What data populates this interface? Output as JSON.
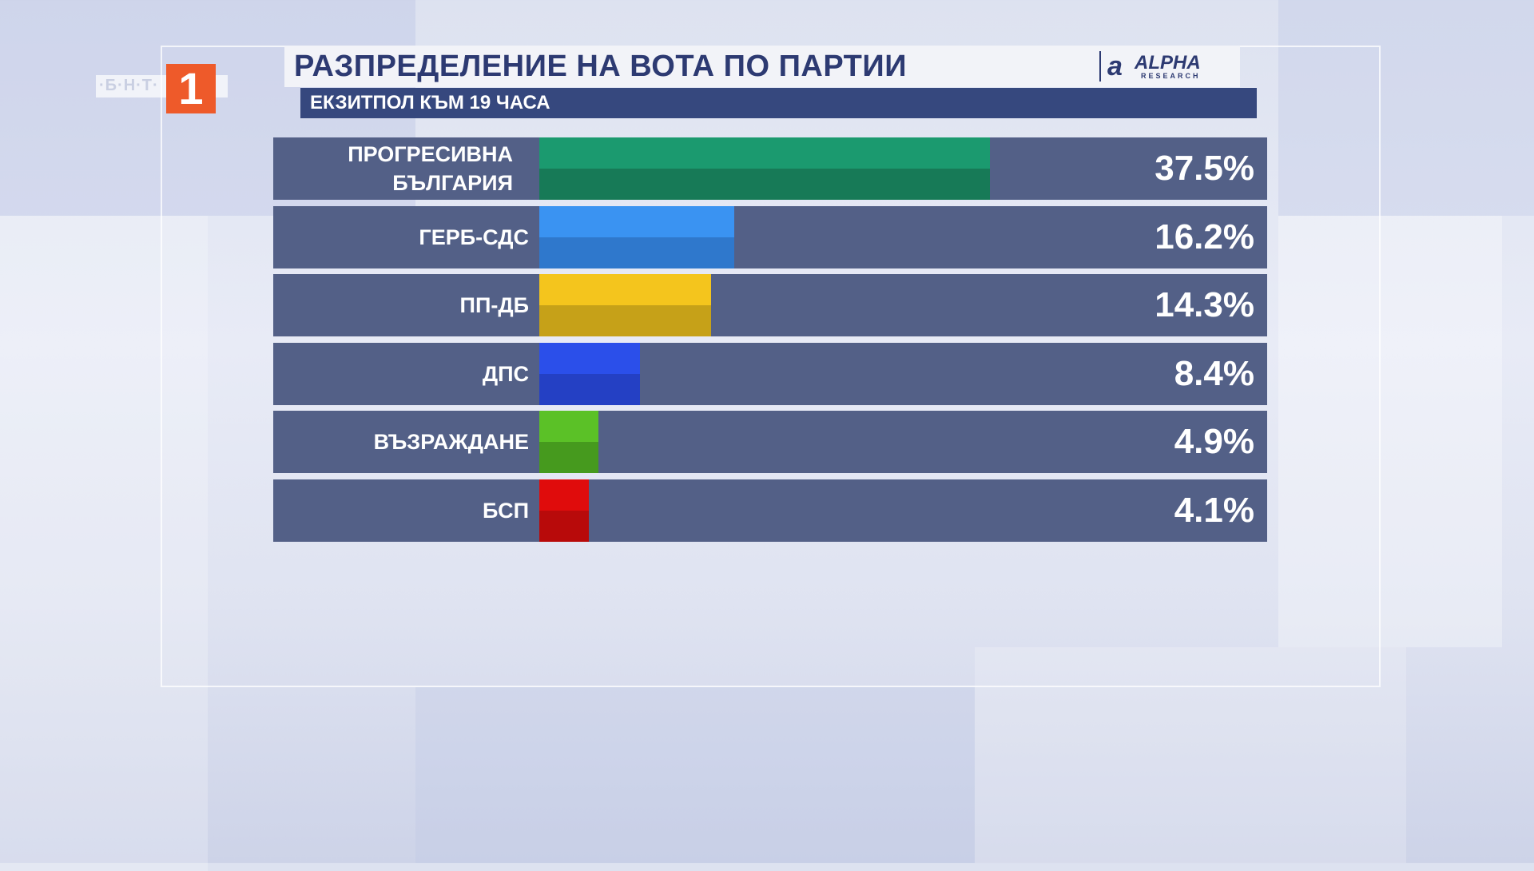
{
  "channel_logo": {
    "text": "·Б·Н·Т·",
    "number": "1"
  },
  "header": {
    "title": "РАЗПРЕДЕЛЕНИЕ НА ВОТА ПО ПАРТИИ",
    "subtitle": "ЕКЗИТПОЛ КЪМ 19 ЧАСА",
    "source_logo": {
      "mark": "a",
      "word": "ALPHA",
      "sub": "RESEARCH"
    }
  },
  "colors": {
    "row_background": "#536087",
    "title_text": "#2d3a72",
    "subtitle_background": "#36487e"
  },
  "chart_data": {
    "type": "bar",
    "orientation": "horizontal",
    "title": "РАЗПРЕДЕЛЕНИЕ НА ВОТА ПО ПАРТИИ",
    "subtitle": "ЕКЗИТПОЛ КЪМ 19 ЧАСА",
    "xlim": [
      0,
      100
    ],
    "grid": false,
    "legend": "none",
    "categories": [
      "ПРОГРЕСИВНА БЪЛГАРИЯ",
      "ГЕРБ-СДС",
      "ПП-ДБ",
      "ДПС",
      "ВЪЗРАЖДАНЕ",
      "БСП"
    ],
    "values": [
      37.5,
      16.2,
      14.3,
      8.4,
      4.9,
      4.1
    ],
    "value_labels": [
      "37.5%",
      "16.2%",
      "14.3%",
      "8.4%",
      "4.9%",
      "4.1%"
    ],
    "bar_colors": [
      {
        "top": "#1b9a6f",
        "bottom": "#177a57"
      },
      {
        "top": "#3a93f2",
        "bottom": "#2f78cc"
      },
      {
        "top": "#f4c51d",
        "bottom": "#c6a118"
      },
      {
        "top": "#2b4fea",
        "bottom": "#2440c4"
      },
      {
        "top": "#5bc127",
        "bottom": "#469a1e"
      },
      {
        "top": "#e00c0c",
        "bottom": "#b80a0a"
      }
    ]
  }
}
